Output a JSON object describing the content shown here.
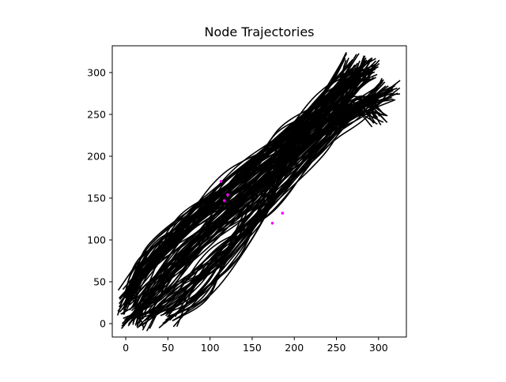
{
  "chart_data": {
    "type": "line",
    "title": "Node Trajectories",
    "xlabel": "",
    "ylabel": "",
    "xlim": [
      -16,
      333
    ],
    "ylim": [
      -16,
      332
    ],
    "xticks": [
      0,
      50,
      100,
      150,
      200,
      250,
      300
    ],
    "yticks": [
      0,
      50,
      100,
      150,
      200,
      250,
      300
    ],
    "grid": false,
    "legend": "none",
    "series": [
      {
        "color": "#000000",
        "x": [
          5,
          40,
          90,
          150,
          210,
          260,
          290
        ],
        "y": [
          2,
          45,
          100,
          160,
          220,
          270,
          300
        ]
      },
      {
        "color": "#000000",
        "x": [
          0,
          20,
          70,
          140,
          200,
          245,
          280
        ],
        "y": [
          20,
          55,
          110,
          165,
          220,
          265,
          305
        ]
      },
      {
        "color": "#000000",
        "x": [
          10,
          30,
          80,
          150,
          220,
          270,
          300
        ],
        "y": [
          5,
          35,
          90,
          150,
          215,
          260,
          245
        ]
      },
      {
        "color": "#000000",
        "x": [
          3,
          25,
          75,
          130,
          190,
          235,
          270
        ],
        "y": [
          30,
          70,
          120,
          175,
          225,
          270,
          315
        ]
      },
      {
        "color": "#000000",
        "x": [
          50,
          90,
          130,
          160,
          190,
          240,
          310
        ],
        "y": [
          3,
          40,
          90,
          140,
          200,
          240,
          275
        ]
      },
      {
        "color": "#000000",
        "x": [
          20,
          55,
          110,
          170,
          230,
          275,
          315
        ],
        "y": [
          2,
          30,
          80,
          140,
          210,
          255,
          283
        ]
      },
      {
        "color": "#000000",
        "x": [
          2,
          35,
          95,
          160,
          215,
          255,
          290
        ],
        "y": [
          40,
          85,
          140,
          195,
          240,
          280,
          310
        ]
      }
    ],
    "highlight_points": [
      {
        "color": "#ff00ff",
        "x": 117,
        "y": 147
      },
      {
        "color": "#ff00ff",
        "x": 121,
        "y": 154
      },
      {
        "color": "#ff00ff",
        "x": 113,
        "y": 170
      },
      {
        "color": "#ff00ff",
        "x": 174,
        "y": 120
      },
      {
        "color": "#ff00ff",
        "x": 186,
        "y": 132
      }
    ]
  }
}
